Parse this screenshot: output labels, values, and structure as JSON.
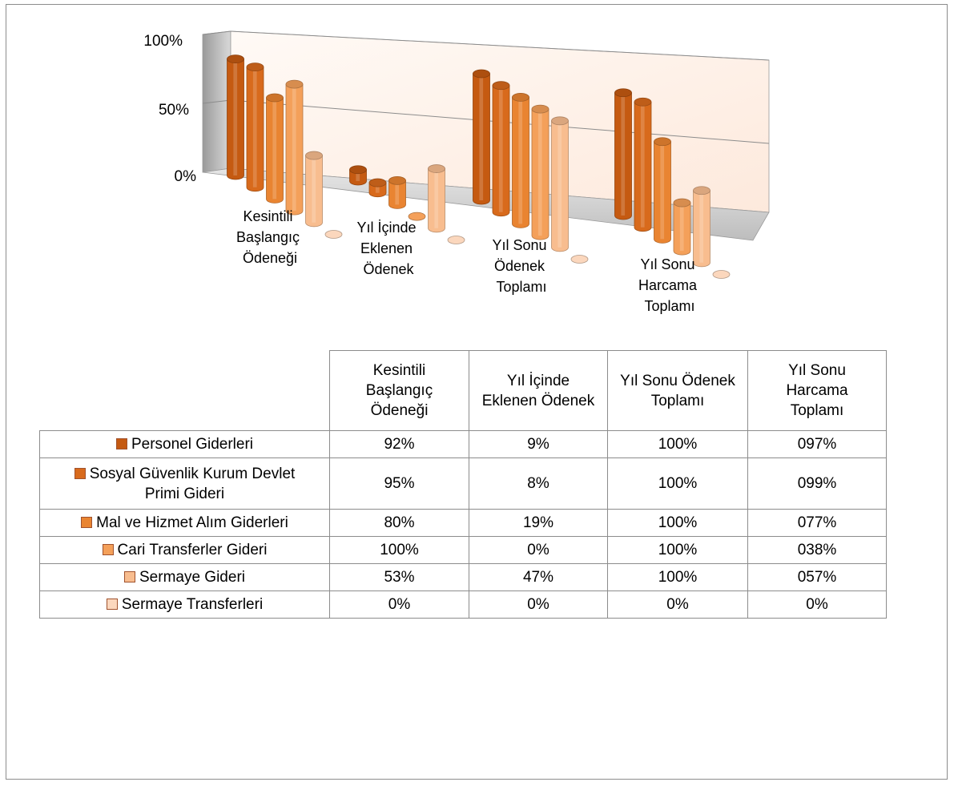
{
  "chart_data": {
    "type": "bar",
    "subtype": "3d-cylinder-clustered",
    "y_ticks": [
      "100%",
      "50%",
      "0%"
    ],
    "ylim": [
      0,
      100
    ],
    "categories": [
      [
        "Kesintili",
        "Başlangıç",
        "Ödeneği"
      ],
      [
        "Yıl İçinde",
        "Eklenen",
        "Ödenek"
      ],
      [
        "Yıl Sonu",
        "Ödenek",
        "Toplamı"
      ],
      [
        "Yıl Sonu",
        "Harcama",
        "Toplamı"
      ]
    ],
    "table_headers": [
      [
        "Kesintili",
        "Başlangıç",
        "Ödeneği"
      ],
      [
        "Yıl İçinde",
        "Eklenen Ödenek"
      ],
      [
        "Yıl Sonu Ödenek",
        "Toplamı"
      ],
      [
        "Yıl Sonu",
        "Harcama",
        "Toplamı"
      ]
    ],
    "series": [
      {
        "name": "Personel Giderleri",
        "name_lines": [
          "Personel Giderleri"
        ],
        "color": "#c55a11",
        "values": [
          92,
          9,
          100,
          97
        ],
        "labels": [
          "92%",
          "9%",
          "100%",
          "097%"
        ]
      },
      {
        "name": "Sosyal Güvenlik Kurum Devlet Primi Gideri",
        "name_lines": [
          "Sosyal Güvenlik Kurum Devlet",
          "Primi Gideri"
        ],
        "color": "#d86a1c",
        "values": [
          95,
          8,
          100,
          99
        ],
        "labels": [
          "95%",
          "8%",
          "100%",
          "099%"
        ]
      },
      {
        "name": "Mal ve Hizmet Alım Giderleri",
        "name_lines": [
          "Mal ve Hizmet Alım Giderleri"
        ],
        "color": "#e98431",
        "values": [
          80,
          19,
          100,
          77
        ],
        "labels": [
          "80%",
          "19%",
          "100%",
          "077%"
        ]
      },
      {
        "name": "Cari Transferler Gideri",
        "name_lines": [
          "Cari Transferler Gideri"
        ],
        "color": "#f4a05a",
        "values": [
          100,
          0,
          100,
          38
        ],
        "labels": [
          "100%",
          "0%",
          "100%",
          "038%"
        ]
      },
      {
        "name": "Sermaye Gideri",
        "name_lines": [
          "Sermaye Gideri"
        ],
        "color": "#f8bd8f",
        "values": [
          53,
          47,
          100,
          57
        ],
        "labels": [
          "53%",
          "47%",
          "100%",
          "057%"
        ]
      },
      {
        "name": "Sermaye Transferleri",
        "name_lines": [
          "Sermaye Transferleri"
        ],
        "color": "#fbd7bd",
        "values": [
          0,
          0,
          0,
          0
        ],
        "labels": [
          "0%",
          "0%",
          "0%",
          "0%"
        ]
      }
    ]
  }
}
